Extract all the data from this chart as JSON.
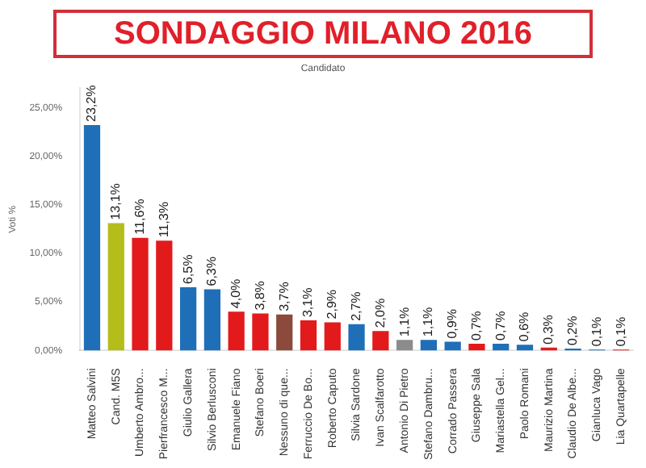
{
  "chart_data": {
    "type": "bar",
    "title": "SONDAGGIO MILANO 2016",
    "subtitle": "Candidato",
    "ylabel": "Voti %",
    "categories": [
      "Matteo Salvini",
      "Cand. M5S",
      "Umberto Ambro...",
      "Pierfrancesco M...",
      "Giulio Gallera",
      "Silvio Berlusconi",
      "Emanuele Fiano",
      "Stefano Boeri",
      "Nessuno di que...",
      "Ferruccio De Bo...",
      "Roberto Caputo",
      "Silvia Sardone",
      "Ivan Scalfarotto",
      "Antonio Di Pietro",
      "Stefano Dambru...",
      "Corrado Passera",
      "Giuseppe Sala",
      "Mariastella Gel...",
      "Paolo Romani",
      "Maurizio Martina",
      "Claudio De Albe...",
      "Gianluca Vago",
      "Lia Quartapelle"
    ],
    "values": [
      23.2,
      13.1,
      11.6,
      11.3,
      6.5,
      6.3,
      4.0,
      3.8,
      3.7,
      3.1,
      2.9,
      2.7,
      2.0,
      1.1,
      1.1,
      0.9,
      0.7,
      0.7,
      0.6,
      0.3,
      0.2,
      0.1,
      0.1
    ],
    "value_labels": [
      "23,2%",
      "13,1%",
      "11,6%",
      "11,3%",
      "6,5%",
      "6,3%",
      "4,0%",
      "3,8%",
      "3,7%",
      "3,1%",
      "2,9%",
      "2,7%",
      "2,0%",
      "1,1%",
      "1,1%",
      "0,9%",
      "0,7%",
      "0,7%",
      "0,6%",
      "0,3%",
      "0,2%",
      "0,1%",
      "0,1%"
    ],
    "colors": [
      "#1f6fb8",
      "#b5bd1a",
      "#e31a1c",
      "#e31a1c",
      "#1f6fb8",
      "#1f6fb8",
      "#e31a1c",
      "#e31a1c",
      "#8b4a3c",
      "#e31a1c",
      "#e31a1c",
      "#1f6fb8",
      "#e31a1c",
      "#8c8c8c",
      "#1f6fb8",
      "#1f6fb8",
      "#e31a1c",
      "#1f6fb8",
      "#1f6fb8",
      "#e31a1c",
      "#1f6fb8",
      "#1f6fb8",
      "#e31a1c"
    ],
    "ylim": [
      0,
      27
    ],
    "yticks": [
      {
        "value": 0,
        "label": "0,00%"
      },
      {
        "value": 5,
        "label": "5,00%"
      },
      {
        "value": 10,
        "label": "10,00%"
      },
      {
        "value": 15,
        "label": "15,00%"
      },
      {
        "value": 20,
        "label": "20,00%"
      },
      {
        "value": 25,
        "label": "25,00%"
      }
    ],
    "grid": false,
    "legend": false
  }
}
